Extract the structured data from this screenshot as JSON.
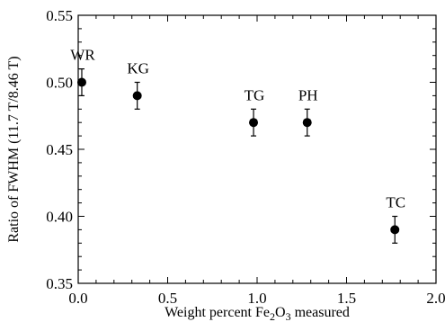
{
  "chart_data": {
    "type": "scatter",
    "xlabel": "Weight percent Fe2O3 measured",
    "ylabel": "Ratio of FWHM (11.7 T/8.46 T)",
    "xlim": [
      0.0,
      2.0
    ],
    "ylim": [
      0.35,
      0.55
    ],
    "xticks": [
      "0.0",
      "0.5",
      "1.0",
      "1.5",
      "2.0"
    ],
    "yticks": [
      "0.35",
      "0.40",
      "0.45",
      "0.50",
      "0.55"
    ],
    "grid": false,
    "points": [
      {
        "label": "WR",
        "x": 0.02,
        "y": 0.5,
        "err": 0.01
      },
      {
        "label": "KG",
        "x": 0.33,
        "y": 0.49,
        "err": 0.01
      },
      {
        "label": "TG",
        "x": 0.98,
        "y": 0.47,
        "err": 0.01
      },
      {
        "label": "PH",
        "x": 1.28,
        "y": 0.47,
        "err": 0.01
      },
      {
        "label": "TC",
        "x": 1.77,
        "y": 0.39,
        "err": 0.01
      }
    ]
  }
}
